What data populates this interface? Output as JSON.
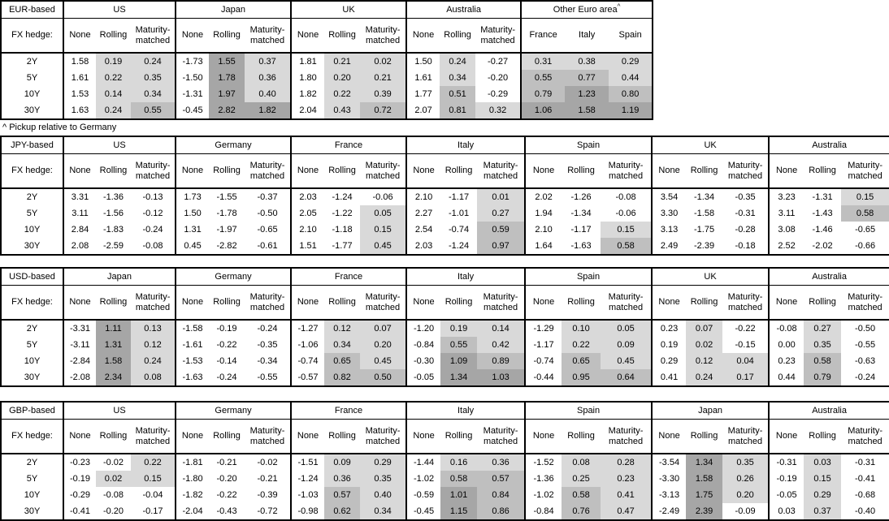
{
  "labels": {
    "fx_hedge": "FX hedge:"
  },
  "footnote": "^ Pickup relative to Germany",
  "tenors": [
    "2Y",
    "5Y",
    "10Y",
    "30Y"
  ],
  "colors": {
    "shade_light": "#d9d9d9",
    "shade_medium": "#bfbfbf",
    "shade_dark": "#a6a6a6",
    "border": "#000000",
    "background": "#ffffff"
  },
  "shading_rule": {
    "applies_to": "all columns except None",
    "light": ">= 0",
    "medium": ">= 0.5",
    "dark": ">= 1.0",
    "unshaded": "< 0"
  },
  "tables": [
    {
      "base": "EUR-based",
      "groups": [
        {
          "name": "US",
          "cols": [
            "None",
            "Rolling",
            "Maturity-matched"
          ],
          "rows": [
            [
              "1.58",
              "0.19",
              "0.24"
            ],
            [
              "1.61",
              "0.22",
              "0.35"
            ],
            [
              "1.53",
              "0.14",
              "0.34"
            ],
            [
              "1.63",
              "0.24",
              "0.55"
            ]
          ]
        },
        {
          "name": "Japan",
          "cols": [
            "None",
            "Rolling",
            "Maturity-matched"
          ],
          "rows": [
            [
              "-1.73",
              "1.55",
              "0.37"
            ],
            [
              "-1.50",
              "1.78",
              "0.36"
            ],
            [
              "-1.31",
              "1.97",
              "0.40"
            ],
            [
              "-0.45",
              "2.82",
              "1.82"
            ]
          ]
        },
        {
          "name": "UK",
          "cols": [
            "None",
            "Rolling",
            "Maturity-matched"
          ],
          "rows": [
            [
              "1.81",
              "0.21",
              "0.02"
            ],
            [
              "1.80",
              "0.20",
              "0.21"
            ],
            [
              "1.82",
              "0.22",
              "0.39"
            ],
            [
              "2.04",
              "0.43",
              "0.72"
            ]
          ]
        },
        {
          "name": "Australia",
          "cols": [
            "None",
            "Rolling",
            "Maturity-matched"
          ],
          "rows": [
            [
              "1.50",
              "0.24",
              "-0.27"
            ],
            [
              "1.61",
              "0.34",
              "-0.20"
            ],
            [
              "1.77",
              "0.51",
              "-0.29"
            ],
            [
              "2.07",
              "0.81",
              "0.32"
            ]
          ]
        },
        {
          "name": "Other Euro area",
          "sup": "^",
          "cols": [
            "France",
            "Italy",
            "Spain"
          ],
          "rows": [
            [
              "0.31",
              "0.38",
              "0.29"
            ],
            [
              "0.55",
              "0.77",
              "0.44"
            ],
            [
              "0.79",
              "1.23",
              "0.80"
            ],
            [
              "1.06",
              "1.58",
              "1.19"
            ]
          ]
        }
      ]
    },
    {
      "base": "JPY-based",
      "groups": [
        {
          "name": "US",
          "cols": [
            "None",
            "Rolling",
            "Maturity-matched"
          ],
          "rows": [
            [
              "3.31",
              "-1.36",
              "-0.13"
            ],
            [
              "3.11",
              "-1.56",
              "-0.12"
            ],
            [
              "2.84",
              "-1.83",
              "-0.24"
            ],
            [
              "2.08",
              "-2.59",
              "-0.08"
            ]
          ]
        },
        {
          "name": "Germany",
          "cols": [
            "None",
            "Rolling",
            "Maturity-matched"
          ],
          "rows": [
            [
              "1.73",
              "-1.55",
              "-0.37"
            ],
            [
              "1.50",
              "-1.78",
              "-0.50"
            ],
            [
              "1.31",
              "-1.97",
              "-0.65"
            ],
            [
              "0.45",
              "-2.82",
              "-0.61"
            ]
          ]
        },
        {
          "name": "France",
          "cols": [
            "None",
            "Rolling",
            "Maturity-matched"
          ],
          "rows": [
            [
              "2.03",
              "-1.24",
              "-0.06"
            ],
            [
              "2.05",
              "-1.22",
              "0.05"
            ],
            [
              "2.10",
              "-1.18",
              "0.15"
            ],
            [
              "1.51",
              "-1.77",
              "0.45"
            ]
          ]
        },
        {
          "name": "Italy",
          "cols": [
            "None",
            "Rolling",
            "Maturity-matched"
          ],
          "rows": [
            [
              "2.10",
              "-1.17",
              "0.01"
            ],
            [
              "2.27",
              "-1.01",
              "0.27"
            ],
            [
              "2.54",
              "-0.74",
              "0.59"
            ],
            [
              "2.03",
              "-1.24",
              "0.97"
            ]
          ]
        },
        {
          "name": "Spain",
          "cols": [
            "None",
            "Rolling",
            "Maturity-matched"
          ],
          "rows": [
            [
              "2.02",
              "-1.26",
              "-0.08"
            ],
            [
              "1.94",
              "-1.34",
              "-0.06"
            ],
            [
              "2.10",
              "-1.17",
              "0.15"
            ],
            [
              "1.64",
              "-1.63",
              "0.58"
            ]
          ]
        },
        {
          "name": "UK",
          "cols": [
            "None",
            "Rolling",
            "Maturity-matched"
          ],
          "rows": [
            [
              "3.54",
              "-1.34",
              "-0.35"
            ],
            [
              "3.30",
              "-1.58",
              "-0.31"
            ],
            [
              "3.13",
              "-1.75",
              "-0.28"
            ],
            [
              "2.49",
              "-2.39",
              "-0.18"
            ]
          ]
        },
        {
          "name": "Australia",
          "cols": [
            "None",
            "Rolling",
            "Maturity-matched"
          ],
          "rows": [
            [
              "3.23",
              "-1.31",
              "0.15"
            ],
            [
              "3.11",
              "-1.43",
              "0.58"
            ],
            [
              "3.08",
              "-1.46",
              "-0.65"
            ],
            [
              "2.52",
              "-2.02",
              "-0.66"
            ]
          ]
        }
      ]
    },
    {
      "base": "USD-based",
      "groups": [
        {
          "name": "Japan",
          "cols": [
            "None",
            "Rolling",
            "Maturity-matched"
          ],
          "rows": [
            [
              "-3.31",
              "1.11",
              "0.13"
            ],
            [
              "-3.11",
              "1.31",
              "0.12"
            ],
            [
              "-2.84",
              "1.58",
              "0.24"
            ],
            [
              "-2.08",
              "2.34",
              "0.08"
            ]
          ]
        },
        {
          "name": "Germany",
          "cols": [
            "None",
            "Rolling",
            "Maturity-matched"
          ],
          "rows": [
            [
              "-1.58",
              "-0.19",
              "-0.24"
            ],
            [
              "-1.61",
              "-0.22",
              "-0.35"
            ],
            [
              "-1.53",
              "-0.14",
              "-0.34"
            ],
            [
              "-1.63",
              "-0.24",
              "-0.55"
            ]
          ]
        },
        {
          "name": "France",
          "cols": [
            "None",
            "Rolling",
            "Maturity-matched"
          ],
          "rows": [
            [
              "-1.27",
              "0.12",
              "0.07"
            ],
            [
              "-1.06",
              "0.34",
              "0.20"
            ],
            [
              "-0.74",
              "0.65",
              "0.45"
            ],
            [
              "-0.57",
              "0.82",
              "0.50"
            ]
          ]
        },
        {
          "name": "Italy",
          "cols": [
            "None",
            "Rolling",
            "Maturity-matched"
          ],
          "rows": [
            [
              "-1.20",
              "0.19",
              "0.14"
            ],
            [
              "-0.84",
              "0.55",
              "0.42"
            ],
            [
              "-0.30",
              "1.09",
              "0.89"
            ],
            [
              "-0.05",
              "1.34",
              "1.03"
            ]
          ]
        },
        {
          "name": "Spain",
          "cols": [
            "None",
            "Rolling",
            "Maturity-matched"
          ],
          "rows": [
            [
              "-1.29",
              "0.10",
              "0.05"
            ],
            [
              "-1.17",
              "0.22",
              "0.09"
            ],
            [
              "-0.74",
              "0.65",
              "0.45"
            ],
            [
              "-0.44",
              "0.95",
              "0.64"
            ]
          ]
        },
        {
          "name": "UK",
          "cols": [
            "None",
            "Rolling",
            "Maturity-matched"
          ],
          "rows": [
            [
              "0.23",
              "0.07",
              "-0.22"
            ],
            [
              "0.19",
              "0.02",
              "-0.15"
            ],
            [
              "0.29",
              "0.12",
              "0.04"
            ],
            [
              "0.41",
              "0.24",
              "0.17"
            ]
          ]
        },
        {
          "name": "Australia",
          "cols": [
            "None",
            "Rolling",
            "Maturity-matched"
          ],
          "rows": [
            [
              "-0.08",
              "0.27",
              "-0.50"
            ],
            [
              "0.00",
              "0.35",
              "-0.55"
            ],
            [
              "0.23",
              "0.58",
              "-0.63"
            ],
            [
              "0.44",
              "0.79",
              "-0.24"
            ]
          ]
        }
      ]
    },
    {
      "base": "GBP-based",
      "groups": [
        {
          "name": "US",
          "cols": [
            "None",
            "Rolling",
            "Maturity-matched"
          ],
          "rows": [
            [
              "-0.23",
              "-0.02",
              "0.22"
            ],
            [
              "-0.19",
              "0.02",
              "0.15"
            ],
            [
              "-0.29",
              "-0.08",
              "-0.04"
            ],
            [
              "-0.41",
              "-0.20",
              "-0.17"
            ]
          ]
        },
        {
          "name": "Germany",
          "cols": [
            "None",
            "Rolling",
            "Maturity-matched"
          ],
          "rows": [
            [
              "-1.81",
              "-0.21",
              "-0.02"
            ],
            [
              "-1.80",
              "-0.20",
              "-0.21"
            ],
            [
              "-1.82",
              "-0.22",
              "-0.39"
            ],
            [
              "-2.04",
              "-0.43",
              "-0.72"
            ]
          ]
        },
        {
          "name": "France",
          "cols": [
            "None",
            "Rolling",
            "Maturity-matched"
          ],
          "rows": [
            [
              "-1.51",
              "0.09",
              "0.29"
            ],
            [
              "-1.24",
              "0.36",
              "0.35"
            ],
            [
              "-1.03",
              "0.57",
              "0.40"
            ],
            [
              "-0.98",
              "0.62",
              "0.34"
            ]
          ]
        },
        {
          "name": "Italy",
          "cols": [
            "None",
            "Rolling",
            "Maturity-matched"
          ],
          "rows": [
            [
              "-1.44",
              "0.16",
              "0.36"
            ],
            [
              "-1.02",
              "0.58",
              "0.57"
            ],
            [
              "-0.59",
              "1.01",
              "0.84"
            ],
            [
              "-0.45",
              "1.15",
              "0.86"
            ]
          ]
        },
        {
          "name": "Spain",
          "cols": [
            "None",
            "Rolling",
            "Maturity-matched"
          ],
          "rows": [
            [
              "-1.52",
              "0.08",
              "0.28"
            ],
            [
              "-1.36",
              "0.25",
              "0.23"
            ],
            [
              "-1.02",
              "0.58",
              "0.41"
            ],
            [
              "-0.84",
              "0.76",
              "0.47"
            ]
          ]
        },
        {
          "name": "Japan",
          "cols": [
            "None",
            "Rolling",
            "Maturity-matched"
          ],
          "rows": [
            [
              "-3.54",
              "1.34",
              "0.35"
            ],
            [
              "-3.30",
              "1.58",
              "0.26"
            ],
            [
              "-3.13",
              "1.75",
              "0.20"
            ],
            [
              "-2.49",
              "2.39",
              "-0.09"
            ]
          ]
        },
        {
          "name": "Australia",
          "cols": [
            "None",
            "Rolling",
            "Maturity-matched"
          ],
          "rows": [
            [
              "-0.31",
              "0.03",
              "-0.31"
            ],
            [
              "-0.19",
              "0.15",
              "-0.41"
            ],
            [
              "-0.05",
              "0.29",
              "-0.68"
            ],
            [
              "0.03",
              "0.37",
              "-0.40"
            ]
          ]
        }
      ]
    }
  ]
}
